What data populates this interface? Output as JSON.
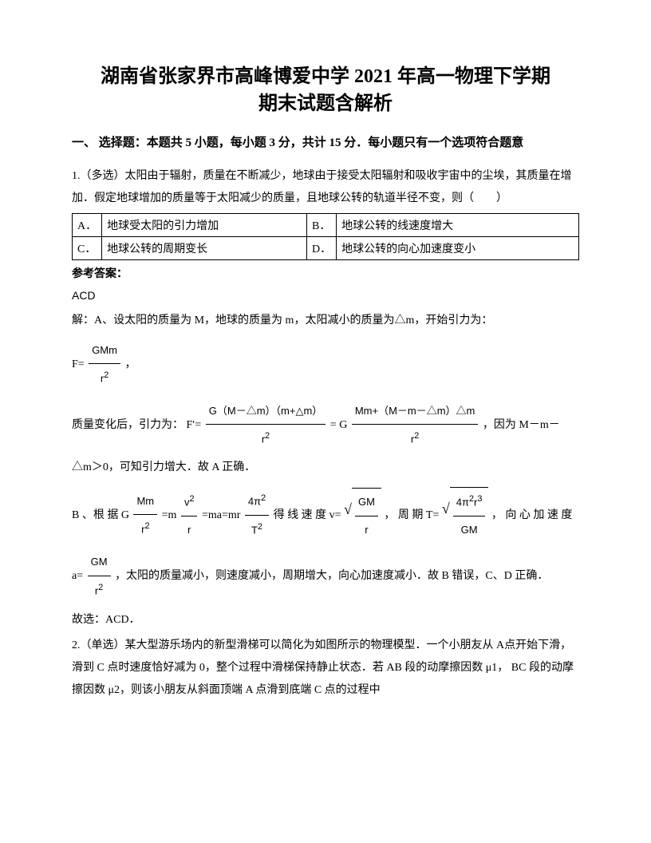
{
  "title_line1": "湖南省张家界市高峰博爱中学 2021 年高一物理下学期",
  "title_line2": "期末试题含解析",
  "section1": "一、 选择题：本题共 5 小题，每小题 3 分，共计 15 分．每小题只有一个选项符合题意",
  "q1": {
    "stem": "1.（多选）太阳由于辐射，质量在不断减少，地球由于接受太阳辐射和吸收宇宙中的尘埃，其质量在增加．假定地球增加的质量等于太阳减少的质量，且地球公转的轨道半径不变，则（　　）",
    "opts": {
      "A": "地球受太阳的引力增加",
      "B": "地球公转的线速度增大",
      "C": "地球公转的周期变长",
      "D": "地球公转的向心加速度变小"
    },
    "ans_label": "参考答案：",
    "ans": "ACD",
    "expA": "解：A、设太阳的质量为 M，地球的质量为 m，太阳减小的质量为△m，开始引力为：",
    "F_eq_prefix": "F=",
    "F_num": "GMm",
    "F_den": "r",
    "F_den_sup": "2",
    "F_suffix": "，",
    "mass_change_prefix": "质量变化后，引力为：",
    "Fp_label": "F′=",
    "Fp1_num": "G（M－△m）（m+△m）",
    "Fp1_den": "r",
    "Fp1_den_sup": "2",
    "eq_sign": "=",
    "Fp2_num_a": "G",
    "Fp2_num_b": "Mm+（M－m－△m）△m",
    "Fp2_den": "r",
    "Fp2_den_sup": "2",
    "because": "，因为 M－m－△m＞0，可知引力增大．故 A 正确．",
    "B_prefix": "B 、根 据",
    "B_eq1_left_num": "Mm",
    "B_eq1_left_den": "r",
    "B_eq1_left_den_sup": "2",
    "B_eq1_G": "G",
    "B_eq1_mid1_num": "v",
    "B_eq1_mid1_num_sup": "2",
    "B_eq1_mid1_den": "r",
    "B_eq1_m": "=m",
    "B_eq1_ma": "=ma=mr",
    "B_eq1_right_num": "4π",
    "B_eq1_right_num_sup": "2",
    "B_eq1_right_den": "T",
    "B_eq1_right_den_sup": "2",
    "B_mid": " 得 线 速 度 v=",
    "B_sqrt1_num": "GM",
    "B_sqrt1_den": "r",
    "B_T": "， 周 期 T=",
    "B_sqrt2_num": "4π",
    "B_sqrt2_num_sup": "2",
    "B_sqrt2_num_r": "r",
    "B_sqrt2_num_r_sup": "3",
    "B_sqrt2_den": "GM",
    "B_a": "， 向 心 加 速 度",
    "a_prefix": "a=",
    "a_num": "GM",
    "a_den": "r",
    "a_den_sup": "2",
    "a_suffix": "，太阳的质量减小，则速度减小，周期增大，向心加速度减小．故 B 错误，C、D 正确．",
    "conclude": "故选：ACD．"
  },
  "q2": {
    "stem": "2.（单选）某大型游乐场内的新型滑梯可以简化为如图所示的物理模型．一个小朋友从 A点开始下滑，滑到 C 点时速度恰好减为 0，整个过程中滑梯保持静止状态．若 AB 段的动摩擦因数 μ1，  BC 段的动摩擦因数 μ2，则该小朋友从斜面顶端 A 点滑到底端 C 点的过程中"
  }
}
